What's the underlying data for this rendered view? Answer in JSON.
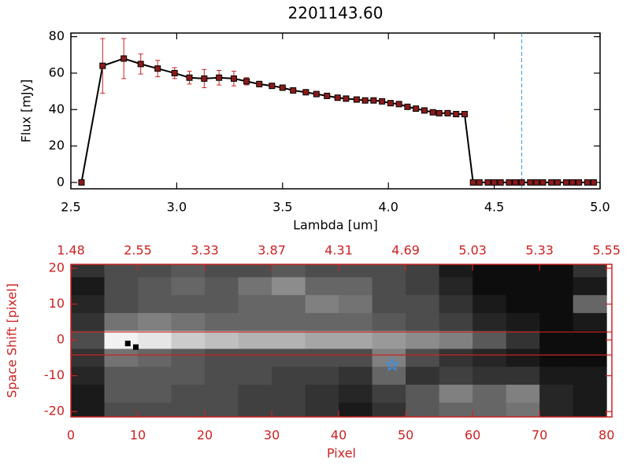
{
  "chart_data": [
    {
      "type": "line",
      "title": "2201143.60",
      "x_label": "Lambda [um]",
      "y_label": "Flux [mJy]",
      "x": [
        2.55,
        2.65,
        2.75,
        2.83,
        2.91,
        2.99,
        3.06,
        3.13,
        3.2,
        3.27,
        3.33,
        3.39,
        3.45,
        3.5,
        3.55,
        3.61,
        3.66,
        3.71,
        3.76,
        3.8,
        3.85,
        3.89,
        3.93,
        3.97,
        4.01,
        4.05,
        4.09,
        4.13,
        4.17,
        4.21,
        4.24,
        4.28,
        4.32,
        4.36,
        4.4,
        4.43,
        4.47,
        4.5,
        4.53,
        4.57,
        4.6,
        4.63,
        4.67,
        4.7,
        4.73,
        4.77,
        4.8,
        4.84,
        4.87,
        4.9,
        4.94,
        4.97
      ],
      "values": [
        0,
        64,
        68,
        65,
        62.5,
        60,
        57.5,
        57,
        57.5,
        57,
        55.5,
        54,
        53,
        52,
        50.5,
        49.5,
        48.5,
        47.5,
        46.5,
        46,
        45.5,
        45,
        45,
        44.5,
        43.5,
        43,
        41.5,
        40.5,
        39.5,
        38.5,
        38,
        38,
        37.5,
        37.5,
        0,
        0,
        0,
        0,
        0,
        0,
        0,
        0,
        0,
        0,
        0,
        0,
        0,
        0,
        0,
        0,
        0,
        0
      ],
      "errors": [
        0,
        15,
        11,
        5.5,
        4.5,
        3,
        3.5,
        5,
        4,
        4,
        2,
        1.5,
        1,
        1,
        1,
        1,
        1,
        1,
        1,
        1,
        1,
        1,
        1,
        1,
        1,
        1,
        1,
        1,
        1,
        1,
        1,
        1,
        1,
        1,
        0,
        0,
        0,
        0,
        0,
        0,
        0,
        0,
        0,
        0,
        0,
        0,
        0,
        0,
        0,
        0,
        0,
        0
      ],
      "color": "#000000",
      "marker_color": "#8b1a1a",
      "error_color": "#d02020",
      "vline": 4.63,
      "vline_color": "#3a9ad9",
      "xlim": [
        2.5,
        5.0
      ],
      "xticks": [
        2.5,
        {
          "value": 3,
          "label": "3.0"
        },
        3.5,
        {
          "value": 4,
          "label": "4.0"
        },
        4.5,
        {
          "value": 5,
          "label": "5.0"
        }
      ],
      "ylim": [
        -3.5,
        82
      ],
      "yticks": [
        0,
        20,
        40,
        60,
        80
      ]
    },
    {
      "type": "heatmap",
      "x_label": "Pixel",
      "y_label": "Space Shift [pixel]",
      "axis_color": "#cc2222",
      "x": [
        2.5,
        7.5,
        12.5,
        17.5,
        22.5,
        27.5,
        32.5,
        37.5,
        42.5,
        47.5,
        52.5,
        57.5,
        62.5,
        67.5,
        72.5,
        77.5
      ],
      "y": [
        20,
        15,
        10,
        5,
        0,
        -5,
        -10,
        -15,
        -20
      ],
      "z": [
        [
          0.2,
          0.3,
          0.3,
          0.35,
          0.3,
          0.3,
          0.35,
          0.3,
          0.3,
          0.3,
          0.25,
          0.1,
          0.05,
          0.05,
          0.05,
          0.2
        ],
        [
          0.1,
          0.3,
          0.35,
          0.4,
          0.35,
          0.45,
          0.55,
          0.4,
          0.4,
          0.3,
          0.25,
          0.15,
          0.05,
          0.05,
          0.05,
          0.1
        ],
        [
          0.15,
          0.3,
          0.35,
          0.35,
          0.35,
          0.4,
          0.4,
          0.5,
          0.45,
          0.3,
          0.3,
          0.2,
          0.1,
          0.05,
          0.05,
          0.4
        ],
        [
          0.2,
          0.45,
          0.5,
          0.45,
          0.4,
          0.4,
          0.4,
          0.4,
          0.4,
          0.35,
          0.3,
          0.25,
          0.15,
          0.1,
          0.05,
          0.1
        ],
        [
          0.3,
          0.95,
          0.9,
          0.8,
          0.75,
          0.7,
          0.7,
          0.65,
          0.65,
          0.6,
          0.55,
          0.5,
          0.35,
          0.2,
          0.05,
          0.05
        ],
        [
          0.2,
          0.45,
          0.4,
          0.35,
          0.3,
          0.3,
          0.3,
          0.3,
          0.3,
          0.5,
          0.3,
          0.2,
          0.15,
          0.1,
          0.05,
          0.05
        ],
        [
          0.15,
          0.35,
          0.35,
          0.35,
          0.3,
          0.3,
          0.25,
          0.25,
          0.2,
          0.4,
          0.2,
          0.25,
          0.2,
          0.2,
          0.1,
          0.1
        ],
        [
          0.1,
          0.35,
          0.35,
          0.3,
          0.3,
          0.25,
          0.25,
          0.2,
          0.15,
          0.25,
          0.35,
          0.5,
          0.4,
          0.5,
          0.15,
          0.1
        ],
        [
          0.1,
          0.3,
          0.3,
          0.3,
          0.3,
          0.25,
          0.25,
          0.2,
          0.1,
          0.2,
          0.35,
          0.4,
          0.4,
          0.45,
          0.15,
          0.1
        ]
      ],
      "hlines": [
        2.2,
        -4.2
      ],
      "markers": [
        {
          "x": 48,
          "y": -7,
          "symbol": "star",
          "color": "#3a8ee6"
        },
        {
          "x": 8.5,
          "y": -1,
          "symbol": "square",
          "color": "#000000"
        },
        {
          "x": 9.7,
          "y": -2,
          "symbol": "square",
          "color": "#000000"
        }
      ],
      "xlim": [
        0,
        80.8
      ],
      "xticks": [
        0,
        10,
        20,
        30,
        40,
        50,
        60,
        70,
        80
      ],
      "x2ticks": [
        {
          "value": 0,
          "label": "1.48"
        },
        {
          "value": 10,
          "label": "2.55"
        },
        {
          "value": 20,
          "label": "3.33"
        },
        {
          "value": 30,
          "label": "3.87"
        },
        {
          "value": 40,
          "label": "4.31"
        },
        {
          "value": 50,
          "label": "4.69"
        },
        {
          "value": 60,
          "label": "5.03"
        },
        {
          "value": 70,
          "label": "5.33"
        },
        {
          "value": 80,
          "label": "5.55"
        }
      ],
      "ylim": [
        -21.5,
        21.1
      ],
      "yticks": [
        -20,
        -10,
        0,
        10,
        20
      ]
    }
  ]
}
